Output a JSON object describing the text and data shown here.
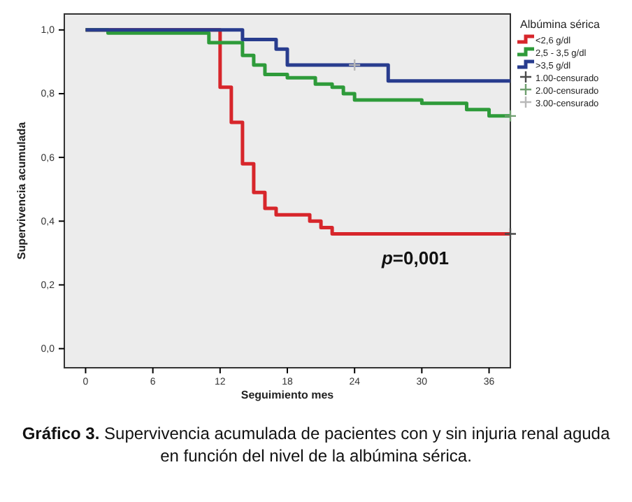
{
  "chart_data": {
    "type": "step",
    "xlabel": "Seguimiento mes",
    "ylabel": "Supervivencia acumulada",
    "legend_title": "Albúmina sérica",
    "xlim": [
      -1.9,
      37.9
    ],
    "ylim": [
      -0.06,
      1.05
    ],
    "xticks": [
      0,
      6,
      12,
      18,
      24,
      30,
      36
    ],
    "yticks": [
      {
        "value": 0,
        "label": "0,0"
      },
      {
        "value": 0.2,
        "label": "0,2"
      },
      {
        "value": 0.4,
        "label": "0,4"
      },
      {
        "value": 0.6,
        "label": "0,6"
      },
      {
        "value": 0.8,
        "label": "0,8"
      },
      {
        "value": 1,
        "label": "1,0"
      }
    ],
    "grid": false,
    "legend": "top right",
    "series": [
      {
        "name": "<2,6 g/dl",
        "color": "#d7262b",
        "x": [
          0,
          12,
          13,
          14,
          15,
          16,
          17,
          20,
          21,
          22,
          37.9
        ],
        "values": [
          1,
          0.82,
          0.71,
          0.58,
          0.49,
          0.44,
          0.42,
          0.4,
          0.38,
          0.36,
          0.36
        ]
      },
      {
        "name": "2,5 - 3,5 g/dl",
        "color": "#2e9b3a",
        "x": [
          0,
          2,
          11,
          14,
          15,
          16,
          18,
          20.5,
          22,
          23,
          24,
          30,
          34,
          36,
          37.9
        ],
        "values": [
          1,
          0.99,
          0.96,
          0.92,
          0.89,
          0.86,
          0.85,
          0.83,
          0.82,
          0.8,
          0.78,
          0.77,
          0.75,
          0.73,
          0.73
        ]
      },
      {
        "name": ">3,5 g/dl",
        "color": "#283c8e",
        "x": [
          0,
          14,
          17,
          18,
          27,
          37.9
        ],
        "values": [
          1,
          0.97,
          0.94,
          0.89,
          0.84,
          0.84
        ]
      },
      {
        "name": "1.00-censurado",
        "type": "scatter",
        "marker": "cross",
        "color": "#4a4a4a",
        "x": [
          37.9
        ],
        "values": [
          0.36
        ]
      },
      {
        "name": "2.00-censurado",
        "type": "scatter",
        "marker": "cross",
        "color": "#6f9f6f",
        "x": [
          37.9
        ],
        "values": [
          0.73
        ]
      },
      {
        "name": "3.00-censurado",
        "type": "scatter",
        "marker": "cross",
        "color": "#b8b8b8",
        "x": [
          24
        ],
        "values": [
          0.89
        ]
      }
    ],
    "annotations": [
      "p=0,001",
      "Gráfico 3.",
      "Supervivencia acumulada de pacientes con y sin injuria renal aguda en función del nivel de la albúmina sérica."
    ]
  }
}
